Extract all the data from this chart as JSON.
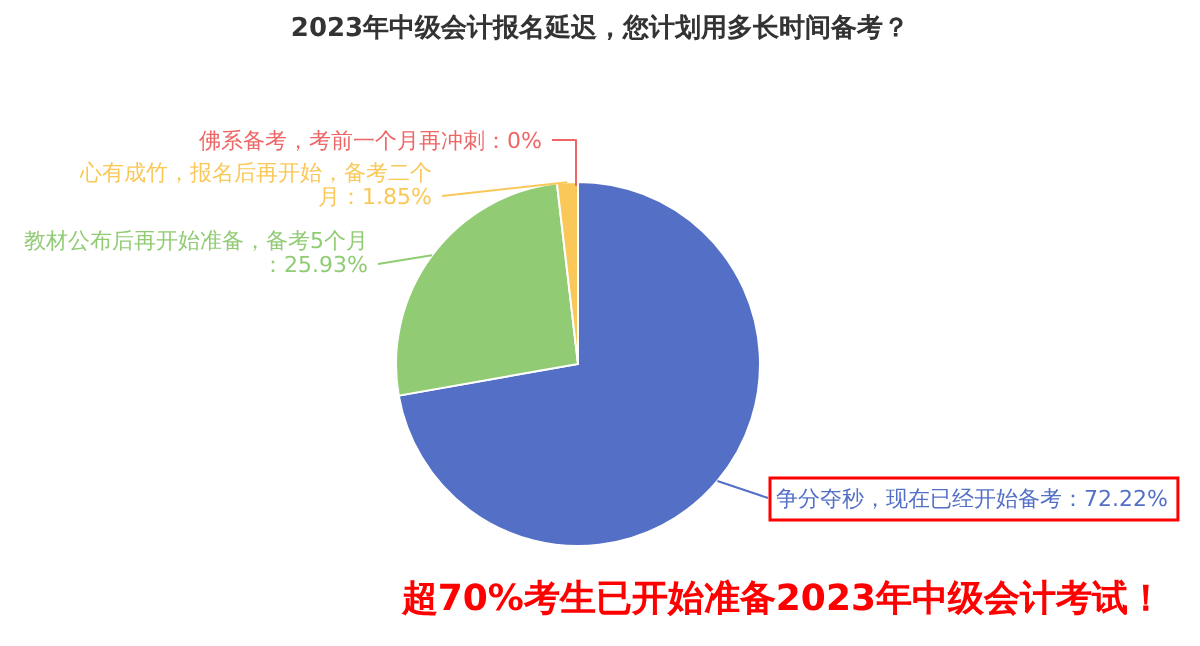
{
  "chart_data": {
    "type": "pie",
    "title": "2023年中级会计报名延迟，您计划用多长时间备考？",
    "categories": [
      "争分夺秒，现在已经开始备考",
      "教材公布后再开始准备，备考5个月",
      "心有成竹，报名后再开始，备考二个月",
      "佛系备考，考前一个月再冲刺"
    ],
    "values": [
      72.22,
      25.93,
      1.85,
      0
    ],
    "colors": [
      "#5470c6",
      "#91cc75",
      "#fac858",
      "#ee6666"
    ],
    "value_labels": [
      "：72.22%",
      "：25.93%",
      "：1.85%",
      "：0%"
    ],
    "annotations": [
      "超70%考生已开始准备2023年中级会计考试！"
    ]
  }
}
